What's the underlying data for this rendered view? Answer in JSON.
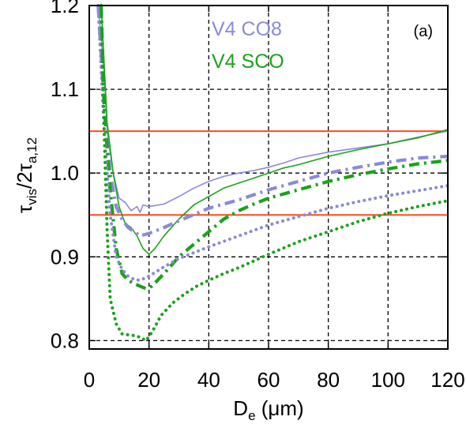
{
  "chart_data": {
    "type": "line",
    "panel_label": "(a)",
    "xlabel": {
      "main": "D",
      "sub": "e",
      "unit": " (μm)"
    },
    "ylabel": {
      "p1": "τ",
      "p1sub": "vis",
      "p2": "/2τ",
      "p2sub": "a,12"
    },
    "xlim": [
      0,
      120
    ],
    "ylim": [
      0.79,
      1.2
    ],
    "xticks": [
      0,
      20,
      40,
      60,
      80,
      100,
      120
    ],
    "yticks": [
      0.8,
      0.9,
      1.0,
      1.1,
      1.2
    ],
    "ytick_labels": [
      "0.8",
      "0.9",
      "1.0",
      "1.1",
      "1.2"
    ],
    "grid": "dashed",
    "band": {
      "ymin": 0.95,
      "ymax": 1.05,
      "color": "#ff4a1c"
    },
    "legend": [
      {
        "name": "V4 CO8",
        "color": "#8a8ad8"
      },
      {
        "name": "V4 SCO",
        "color": "#19a319"
      }
    ],
    "series": [
      {
        "color": "#8a8ad8",
        "style": "thin",
        "points": [
          [
            3,
            1.2
          ],
          [
            5,
            1.12
          ],
          [
            6,
            1.05
          ],
          [
            8,
            1.0
          ],
          [
            10,
            0.97
          ],
          [
            12,
            0.965
          ],
          [
            14,
            0.955
          ],
          [
            16,
            0.96
          ],
          [
            17,
            0.953
          ],
          [
            18,
            0.962
          ],
          [
            20,
            0.96
          ],
          [
            25,
            0.963
          ],
          [
            30,
            0.972
          ],
          [
            35,
            0.982
          ],
          [
            40,
            0.99
          ],
          [
            45,
            0.996
          ],
          [
            50,
            1.0
          ],
          [
            55,
            1.003
          ],
          [
            60,
            1.007
          ],
          [
            65,
            1.012
          ],
          [
            70,
            1.018
          ],
          [
            80,
            1.025
          ],
          [
            90,
            1.03
          ],
          [
            100,
            1.035
          ],
          [
            110,
            1.043
          ],
          [
            120,
            1.05
          ]
        ]
      },
      {
        "color": "#19a319",
        "style": "thin",
        "points": [
          [
            4,
            1.2
          ],
          [
            6,
            1.06
          ],
          [
            8,
            1.0
          ],
          [
            10,
            0.96
          ],
          [
            12,
            0.94
          ],
          [
            14,
            0.935
          ],
          [
            16,
            0.925
          ],
          [
            18,
            0.91
          ],
          [
            20,
            0.903
          ],
          [
            22,
            0.91
          ],
          [
            25,
            0.925
          ],
          [
            30,
            0.945
          ],
          [
            35,
            0.962
          ],
          [
            40,
            0.972
          ],
          [
            45,
            0.982
          ],
          [
            50,
            0.988
          ],
          [
            55,
            0.994
          ],
          [
            60,
            1.0
          ],
          [
            65,
            1.006
          ],
          [
            70,
            1.01
          ],
          [
            80,
            1.02
          ],
          [
            90,
            1.028
          ],
          [
            100,
            1.035
          ],
          [
            110,
            1.042
          ],
          [
            120,
            1.052
          ]
        ]
      },
      {
        "color": "#8a8ad8",
        "style": "dashdot",
        "points": [
          [
            3,
            1.2
          ],
          [
            5,
            1.08
          ],
          [
            7,
            1.0
          ],
          [
            9,
            0.96
          ],
          [
            11,
            0.945
          ],
          [
            13,
            0.935
          ],
          [
            15,
            0.93
          ],
          [
            17,
            0.925
          ],
          [
            20,
            0.928
          ],
          [
            25,
            0.935
          ],
          [
            30,
            0.943
          ],
          [
            40,
            0.958
          ],
          [
            50,
            0.968
          ],
          [
            60,
            0.98
          ],
          [
            70,
            0.99
          ],
          [
            80,
            1.0
          ],
          [
            90,
            1.007
          ],
          [
            100,
            1.013
          ],
          [
            110,
            1.018
          ],
          [
            120,
            1.02
          ]
        ]
      },
      {
        "color": "#19a319",
        "style": "dashdot",
        "points": [
          [
            4,
            1.2
          ],
          [
            5,
            1.08
          ],
          [
            7,
            0.98
          ],
          [
            9,
            0.91
          ],
          [
            11,
            0.88
          ],
          [
            13,
            0.872
          ],
          [
            15,
            0.868
          ],
          [
            17,
            0.865
          ],
          [
            19,
            0.862
          ],
          [
            21,
            0.865
          ],
          [
            25,
            0.88
          ],
          [
            30,
            0.9
          ],
          [
            35,
            0.915
          ],
          [
            40,
            0.93
          ],
          [
            45,
            0.945
          ],
          [
            50,
            0.955
          ],
          [
            55,
            0.963
          ],
          [
            60,
            0.97
          ],
          [
            70,
            0.98
          ],
          [
            80,
            0.99
          ],
          [
            90,
            0.998
          ],
          [
            100,
            1.005
          ],
          [
            110,
            1.011
          ],
          [
            120,
            1.015
          ]
        ]
      },
      {
        "color": "#8a8ad8",
        "style": "dotted",
        "points": [
          [
            3,
            1.2
          ],
          [
            5,
            1.05
          ],
          [
            7,
            0.95
          ],
          [
            9,
            0.9
          ],
          [
            11,
            0.885
          ],
          [
            13,
            0.877
          ],
          [
            15,
            0.873
          ],
          [
            17,
            0.872
          ],
          [
            20,
            0.877
          ],
          [
            25,
            0.888
          ],
          [
            30,
            0.898
          ],
          [
            40,
            0.912
          ],
          [
            50,
            0.925
          ],
          [
            60,
            0.938
          ],
          [
            70,
            0.948
          ],
          [
            80,
            0.958
          ],
          [
            90,
            0.966
          ],
          [
            100,
            0.973
          ],
          [
            110,
            0.979
          ],
          [
            120,
            0.985
          ]
        ]
      },
      {
        "color": "#19a319",
        "style": "dotted",
        "points": [
          [
            4,
            1.2
          ],
          [
            5,
            1.05
          ],
          [
            6,
            0.93
          ],
          [
            7,
            0.85
          ],
          [
            9,
            0.82
          ],
          [
            11,
            0.808
          ],
          [
            13,
            0.807
          ],
          [
            15,
            0.806
          ],
          [
            17,
            0.804
          ],
          [
            19,
            0.8
          ],
          [
            21,
            0.81
          ],
          [
            24,
            0.83
          ],
          [
            28,
            0.845
          ],
          [
            32,
            0.856
          ],
          [
            36,
            0.865
          ],
          [
            40,
            0.872
          ],
          [
            45,
            0.88
          ],
          [
            50,
            0.887
          ],
          [
            55,
            0.895
          ],
          [
            60,
            0.903
          ],
          [
            70,
            0.918
          ],
          [
            80,
            0.93
          ],
          [
            90,
            0.942
          ],
          [
            100,
            0.952
          ],
          [
            110,
            0.96
          ],
          [
            120,
            0.967
          ]
        ]
      }
    ]
  }
}
